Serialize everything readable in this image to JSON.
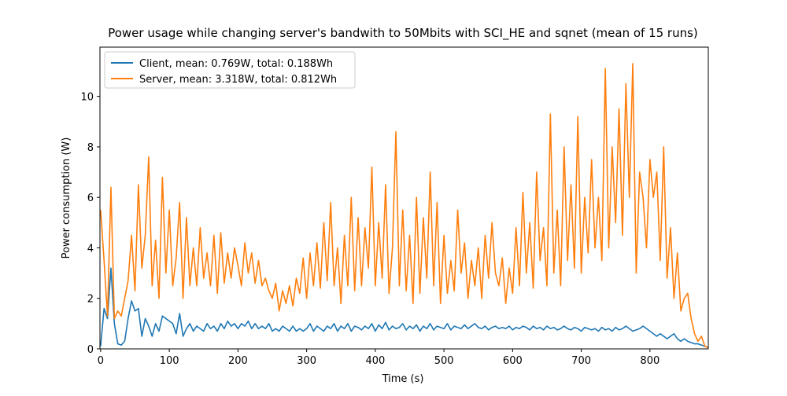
{
  "chart_data": {
    "type": "line",
    "title": "Power usage while changing server's bandwith to 50Mbits with SCI_HE and sqnet (mean of 15 runs)",
    "x_label": "Time (s)",
    "y_label": "Power consumption (W)",
    "xlim": [
      -1,
      885
    ],
    "ylim": [
      0,
      11.95
    ],
    "xticks": [
      0,
      100,
      200,
      300,
      400,
      500,
      600,
      700,
      800
    ],
    "yticks": [
      0,
      2,
      4,
      6,
      8,
      10
    ],
    "legend": "upper left",
    "grid": false,
    "x": [
      0,
      5,
      10,
      15,
      20,
      25,
      30,
      35,
      40,
      45,
      50,
      55,
      60,
      65,
      70,
      75,
      80,
      85,
      90,
      95,
      100,
      105,
      110,
      115,
      120,
      125,
      130,
      135,
      140,
      145,
      150,
      155,
      160,
      165,
      170,
      175,
      180,
      185,
      190,
      195,
      200,
      205,
      210,
      215,
      220,
      225,
      230,
      235,
      240,
      245,
      250,
      255,
      260,
      265,
      270,
      275,
      280,
      285,
      290,
      295,
      300,
      305,
      310,
      315,
      320,
      325,
      330,
      335,
      340,
      345,
      350,
      355,
      360,
      365,
      370,
      375,
      380,
      385,
      390,
      395,
      400,
      405,
      410,
      415,
      420,
      425,
      430,
      435,
      440,
      445,
      450,
      455,
      460,
      465,
      470,
      475,
      480,
      485,
      490,
      495,
      500,
      505,
      510,
      515,
      520,
      525,
      530,
      535,
      540,
      545,
      550,
      555,
      560,
      565,
      570,
      575,
      580,
      585,
      590,
      595,
      600,
      605,
      610,
      615,
      620,
      625,
      630,
      635,
      640,
      645,
      650,
      655,
      660,
      665,
      670,
      675,
      680,
      685,
      690,
      695,
      700,
      705,
      710,
      715,
      720,
      725,
      730,
      735,
      740,
      745,
      750,
      755,
      760,
      765,
      770,
      775,
      780,
      785,
      790,
      795,
      800,
      805,
      810,
      815,
      820,
      825,
      830,
      835,
      840,
      845,
      850,
      855,
      860,
      865,
      870,
      875,
      880,
      885
    ],
    "series": [
      {
        "name": "Client, mean: 0.769W, total: 0.188Wh",
        "color": "#1f77b4",
        "values": [
          0.1,
          1.6,
          1.2,
          3.2,
          1.0,
          0.2,
          0.15,
          0.3,
          1.2,
          1.9,
          1.5,
          1.6,
          0.5,
          1.2,
          0.9,
          0.5,
          1.0,
          0.7,
          1.3,
          1.2,
          1.1,
          1.0,
          0.6,
          1.4,
          0.5,
          0.8,
          1.0,
          0.7,
          0.9,
          0.8,
          0.7,
          1.0,
          0.8,
          0.9,
          0.7,
          1.0,
          0.8,
          1.1,
          0.9,
          1.0,
          0.8,
          1.0,
          0.9,
          1.1,
          0.8,
          1.0,
          0.8,
          0.9,
          0.8,
          1.0,
          0.7,
          0.8,
          0.7,
          0.9,
          0.8,
          0.7,
          0.9,
          0.7,
          0.8,
          0.7,
          0.8,
          1.0,
          0.7,
          0.9,
          0.8,
          0.7,
          0.9,
          0.8,
          1.0,
          0.7,
          0.9,
          0.8,
          1.0,
          0.7,
          0.9,
          0.85,
          0.75,
          0.9,
          0.8,
          1.0,
          0.7,
          0.95,
          0.8,
          1.05,
          0.75,
          0.9,
          0.8,
          0.85,
          1.0,
          0.75,
          0.9,
          0.8,
          0.95,
          0.7,
          0.9,
          0.8,
          1.0,
          0.75,
          0.9,
          0.85,
          0.8,
          1.0,
          0.75,
          0.9,
          0.85,
          0.8,
          0.95,
          0.8,
          0.9,
          1.0,
          0.85,
          0.8,
          0.9,
          0.75,
          0.85,
          0.9,
          0.8,
          0.85,
          0.8,
          0.9,
          0.75,
          0.85,
          0.8,
          0.9,
          0.85,
          0.75,
          0.9,
          0.8,
          0.85,
          0.75,
          0.9,
          0.8,
          0.85,
          0.75,
          0.8,
          0.9,
          0.8,
          0.75,
          0.85,
          0.8,
          0.7,
          0.85,
          0.8,
          0.75,
          0.8,
          0.7,
          0.85,
          0.75,
          0.8,
          0.7,
          0.85,
          0.75,
          0.8,
          0.9,
          0.8,
          0.7,
          0.75,
          0.8,
          0.9,
          0.8,
          0.7,
          0.6,
          0.5,
          0.6,
          0.5,
          0.4,
          0.5,
          0.6,
          0.4,
          0.3,
          0.4,
          0.3,
          0.25,
          0.2,
          0.2,
          0.15,
          0.1,
          0.05
        ]
      },
      {
        "name": "Server, mean: 3.318W, total: 0.812Wh",
        "color": "#ff7f0e",
        "values": [
          5.5,
          3.5,
          1.3,
          6.4,
          1.2,
          1.5,
          1.3,
          2.0,
          2.7,
          4.5,
          2.3,
          6.5,
          3.2,
          4.5,
          7.6,
          2.5,
          4.3,
          2.0,
          6.8,
          3.0,
          5.5,
          2.5,
          3.6,
          5.8,
          2.0,
          5.2,
          2.5,
          4.0,
          2.5,
          4.8,
          2.8,
          3.8,
          2.5,
          4.5,
          2.2,
          4.6,
          2.6,
          3.8,
          2.8,
          4.0,
          3.3,
          2.5,
          4.2,
          3.0,
          3.8,
          2.6,
          3.5,
          2.5,
          2.8,
          2.3,
          2.0,
          2.6,
          1.5,
          2.3,
          1.8,
          2.5,
          1.7,
          2.8,
          2.2,
          3.6,
          2.0,
          3.8,
          2.5,
          4.2,
          2.4,
          5.0,
          2.7,
          5.8,
          2.5,
          4.0,
          1.8,
          4.5,
          2.5,
          6.0,
          2.3,
          5.2,
          2.5,
          4.8,
          3.2,
          7.2,
          2.5,
          5.0,
          2.8,
          6.5,
          2.2,
          4.0,
          8.6,
          2.5,
          5.5,
          2.3,
          4.5,
          1.8,
          6.0,
          2.2,
          5.2,
          2.8,
          7.0,
          2.5,
          5.8,
          1.8,
          4.5,
          2.2,
          3.5,
          2.3,
          5.5,
          3.0,
          4.2,
          2.0,
          3.5,
          2.5,
          4.0,
          2.0,
          4.5,
          2.8,
          5.0,
          3.0,
          2.5,
          3.6,
          1.8,
          3.2,
          2.2,
          4.8,
          2.5,
          6.2,
          3.0,
          5.0,
          2.4,
          7.0,
          3.5,
          4.8,
          2.5,
          9.3,
          3.0,
          5.5,
          2.5,
          8.0,
          3.5,
          6.5,
          3.2,
          9.2,
          3.0,
          6.0,
          3.8,
          7.5,
          4.0,
          6.0,
          3.5,
          11.1,
          4.0,
          8.0,
          5.0,
          9.5,
          4.5,
          10.5,
          6.0,
          11.3,
          3.0,
          7.0,
          6.0,
          4.0,
          7.5,
          6.0,
          7.0,
          3.5,
          8.0,
          2.8,
          4.8,
          2.0,
          3.8,
          1.5,
          2.0,
          2.2,
          1.2,
          0.6,
          0.3,
          0.5,
          0.1,
          0.05
        ]
      }
    ]
  }
}
